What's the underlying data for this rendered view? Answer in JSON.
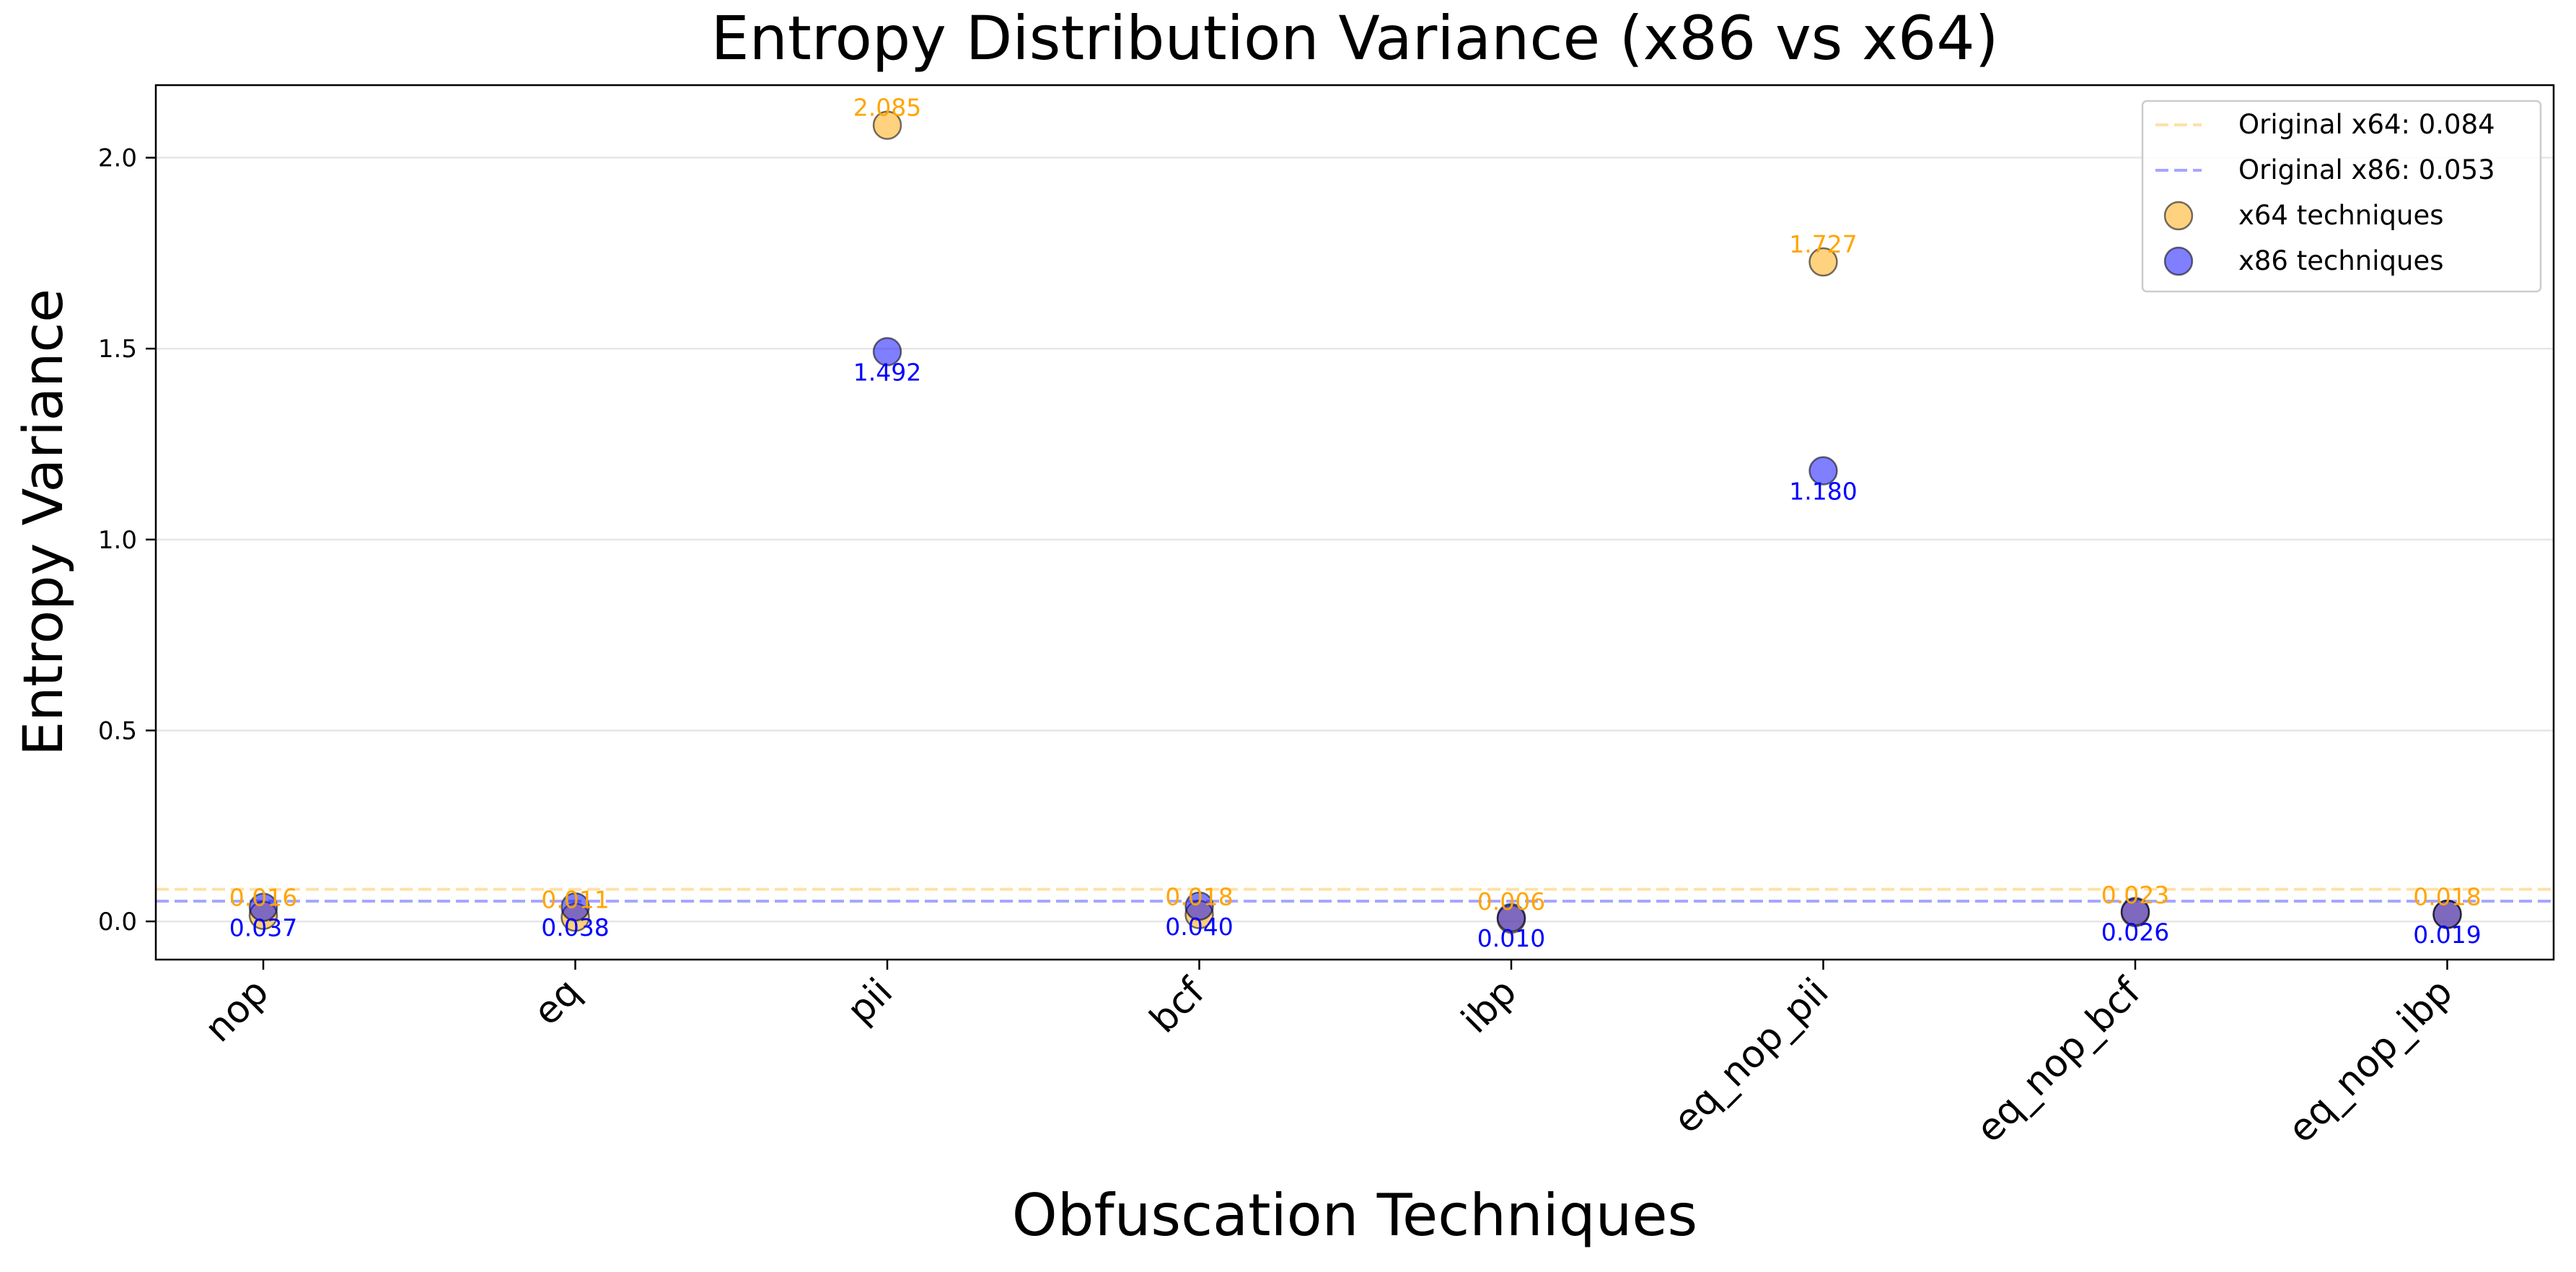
{
  "chart_data": {
    "type": "scatter",
    "title": "Entropy Distribution Variance (x86 vs x64)",
    "xlabel": "Obfuscation Techniques",
    "ylabel": "Entropy Variance",
    "categories": [
      "nop",
      "eq",
      "pii",
      "bcf",
      "ibp",
      "eq_nop_pii",
      "eq_nop_bcf",
      "eq_nop_ibp"
    ],
    "ylim": [
      -0.1,
      2.19
    ],
    "yticks": [
      0.0,
      0.5,
      1.0,
      1.5,
      2.0
    ],
    "ytick_labels": [
      "0.0",
      "0.5",
      "1.0",
      "1.5",
      "2.0"
    ],
    "grid": "horizontal",
    "legend_position": "top-right",
    "series": [
      {
        "name": "x64 techniques",
        "color": "#FFA500",
        "values": [
          0.016,
          0.011,
          2.085,
          0.018,
          0.006,
          1.727,
          0.023,
          0.018
        ],
        "labels": [
          "0.016",
          "0.011",
          "2.085",
          "0.018",
          "0.006",
          "1.727",
          "0.023",
          "0.018"
        ]
      },
      {
        "name": "x86 techniques",
        "color": "#0000FF",
        "values": [
          0.037,
          0.038,
          1.492,
          0.04,
          0.01,
          1.18,
          0.026,
          0.019
        ],
        "labels": [
          "0.037",
          "0.038",
          "1.492",
          "0.040",
          "0.010",
          "1.180",
          "0.026",
          "0.019"
        ]
      }
    ],
    "reference_lines": [
      {
        "name": "Original x64: 0.084",
        "value": 0.084,
        "color": "#FFA500"
      },
      {
        "name": "Original x86: 0.053",
        "value": 0.053,
        "color": "#0000FF"
      }
    ]
  }
}
